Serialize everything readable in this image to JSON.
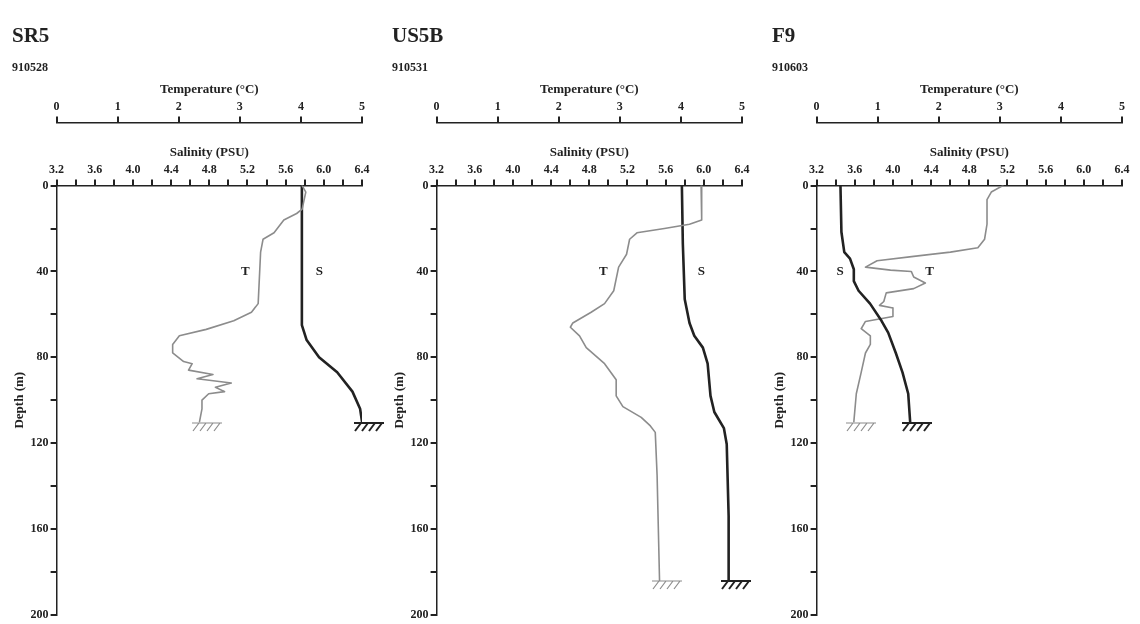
{
  "chart_data": [
    {
      "type": "line",
      "title": "SR5",
      "subtitle": "910528",
      "xlabel": "Salinity (PSU)",
      "x2label": "Temperature (°C)",
      "ylabel": "Depth (m)",
      "xlim": [
        3.2,
        6.4
      ],
      "xticks": [
        3.2,
        {
          "value": 3.4,
          "label": null
        },
        3.6,
        {
          "value": 3.8,
          "label": null
        },
        {
          "value": 4,
          "label": "4.0"
        },
        {
          "value": 4.2,
          "label": null
        },
        4.4,
        {
          "value": 4.6,
          "label": null
        },
        4.8,
        {
          "value": 5,
          "label": null
        },
        5.2,
        {
          "value": 5.4,
          "label": null
        },
        5.6,
        {
          "value": 5.8,
          "label": null
        },
        {
          "value": 6,
          "label": "6.0"
        },
        {
          "value": 6.2,
          "label": null
        },
        6.4
      ],
      "x2lim": [
        0,
        5
      ],
      "x2ticks": [
        0,
        1,
        2,
        3,
        4,
        5
      ],
      "ylim": [
        200,
        0
      ],
      "yticks": [
        0,
        {
          "value": 20,
          "label": null
        },
        40,
        {
          "value": 60,
          "label": null
        },
        80,
        {
          "value": 100,
          "label": null
        },
        120,
        {
          "value": 140,
          "label": null
        },
        160,
        {
          "value": 180,
          "label": null
        },
        200
      ],
      "series": [
        {
          "name": "T",
          "color": "#8c8c8c",
          "axis": "x2",
          "x": [
            4.02,
            4.08,
            4.02,
            3.93,
            3.72,
            3.56,
            3.38,
            3.34,
            3.3,
            3.19,
            2.9,
            2.45,
            2.01,
            1.9,
            1.9,
            2.08,
            2.22,
            2.16,
            2.56,
            2.3,
            2.86,
            2.6,
            2.75,
            2.49,
            2.38,
            2.38,
            2.34
          ],
          "values": [
            0,
            3,
            11,
            13,
            16,
            22,
            25,
            31,
            55,
            59,
            63,
            67,
            70,
            74,
            78,
            82,
            83,
            86,
            88,
            90,
            92,
            94,
            96,
            97,
            100,
            104,
            110
          ]
        },
        {
          "name": "S",
          "color": "#222222",
          "x": [
            5.77,
            5.77,
            5.82,
            5.95,
            6.14,
            6.3,
            6.38,
            6.4
          ],
          "values": [
            0,
            65,
            72,
            80,
            87,
            96,
            104,
            110
          ]
        }
      ]
    },
    {
      "type": "line",
      "title": "US5B",
      "subtitle": "910531",
      "xlabel": "Salinity (PSU)",
      "x2label": "Temperature (°C)",
      "ylabel": "Depth (m)",
      "xlim": [
        3.2,
        6.4
      ],
      "xticks": [
        3.2,
        {
          "value": 3.4,
          "label": null
        },
        3.6,
        {
          "value": 3.8,
          "label": null
        },
        {
          "value": 4,
          "label": "4.0"
        },
        {
          "value": 4.2,
          "label": null
        },
        4.4,
        {
          "value": 4.6,
          "label": null
        },
        4.8,
        {
          "value": 5,
          "label": null
        },
        5.2,
        {
          "value": 5.4,
          "label": null
        },
        5.6,
        {
          "value": 5.8,
          "label": null
        },
        {
          "value": 6,
          "label": "6.0"
        },
        {
          "value": 6.2,
          "label": null
        },
        6.4
      ],
      "x2lim": [
        0,
        5
      ],
      "x2ticks": [
        0,
        1,
        2,
        3,
        4,
        5
      ],
      "ylim": [
        200,
        0
      ],
      "yticks": [
        0,
        {
          "value": 20,
          "label": null
        },
        40,
        {
          "value": 60,
          "label": null
        },
        80,
        {
          "value": 100,
          "label": null
        },
        120,
        {
          "value": 140,
          "label": null
        },
        160,
        {
          "value": 180,
          "label": null
        },
        200
      ],
      "series": [
        {
          "name": "T",
          "color": "#8c8c8c",
          "axis": "x2",
          "x": [
            4.33,
            4.34,
            4.14,
            3.73,
            3.28,
            3.16,
            3.11,
            2.98,
            2.9,
            2.75,
            2.53,
            2.23,
            2.19,
            2.34,
            2.45,
            2.75,
            2.94,
            2.94,
            3.05,
            3.35,
            3.5,
            3.58,
            3.61,
            3.65
          ],
          "values": [
            0,
            16,
            18,
            20,
            22,
            25,
            32,
            38,
            49,
            55,
            59,
            64,
            66,
            70,
            75.5,
            83,
            90.5,
            98,
            103,
            108,
            112,
            115,
            135,
            184
          ]
        },
        {
          "name": "S",
          "color": "#222222",
          "x": [
            5.77,
            5.78,
            5.8,
            5.85,
            5.9,
            5.99,
            6.04,
            6.07,
            6.11,
            6.21,
            6.24,
            6.26,
            6.26
          ],
          "values": [
            0,
            27,
            53,
            64,
            70,
            75.5,
            83,
            98,
            105.5,
            113,
            120.5,
            154,
            184
          ]
        }
      ]
    },
    {
      "type": "line",
      "title": "F9",
      "subtitle": "910603",
      "xlabel": "Salinity (PSU)",
      "x2label": "Temperature (°C)",
      "ylabel": "Depth (m)",
      "xlim": [
        3.2,
        6.4
      ],
      "xticks": [
        3.2,
        {
          "value": 3.4,
          "label": null
        },
        3.6,
        {
          "value": 3.8,
          "label": null
        },
        {
          "value": 4,
          "label": "4.0"
        },
        {
          "value": 4.2,
          "label": null
        },
        4.4,
        {
          "value": 4.6,
          "label": null
        },
        4.8,
        {
          "value": 5,
          "label": null
        },
        5.2,
        {
          "value": 5.4,
          "label": null
        },
        5.6,
        {
          "value": 5.8,
          "label": null
        },
        {
          "value": 6,
          "label": "6.0"
        },
        {
          "value": 6.2,
          "label": null
        },
        6.4
      ],
      "x2lim": [
        0,
        5
      ],
      "x2ticks": [
        0,
        1,
        2,
        3,
        4,
        5
      ],
      "ylim": [
        200,
        0
      ],
      "yticks": [
        0,
        {
          "value": 20,
          "label": null
        },
        40,
        {
          "value": 60,
          "label": null
        },
        80,
        {
          "value": 100,
          "label": null
        },
        120,
        {
          "value": 140,
          "label": null
        },
        160,
        {
          "value": 180,
          "label": null
        },
        200
      ],
      "series": [
        {
          "name": "S",
          "color": "#222222",
          "x": [
            3.45,
            3.46,
            3.49,
            3.55,
            3.59,
            3.59,
            3.64,
            3.76,
            3.88,
            3.95,
            4.03,
            4.1,
            4.16,
            4.18
          ],
          "values": [
            0,
            21.6,
            31,
            34,
            39,
            44.5,
            49,
            55,
            63,
            68.5,
            78,
            87,
            97,
            110
          ]
        },
        {
          "name": "T",
          "color": "#8c8c8c",
          "axis": "x2",
          "x": [
            3.05,
            2.86,
            2.79,
            2.79,
            2.75,
            2.64,
            2.19,
            1.59,
            0.99,
            0.8,
            1.21,
            1.55,
            1.59,
            1.78,
            1.59,
            1.14,
            1.1,
            1.03,
            1.25,
            1.25,
            0.8,
            0.73,
            0.88,
            0.88,
            0.8,
            0.73,
            0.65,
            0.61
          ],
          "values": [
            0,
            3,
            6.5,
            18,
            25,
            29,
            31,
            33,
            35,
            38,
            39.4,
            40,
            42.6,
            45.4,
            48,
            50,
            54,
            55.8,
            57,
            61,
            63.3,
            66.7,
            70,
            74,
            78,
            87,
            97,
            110
          ]
        }
      ]
    }
  ]
}
